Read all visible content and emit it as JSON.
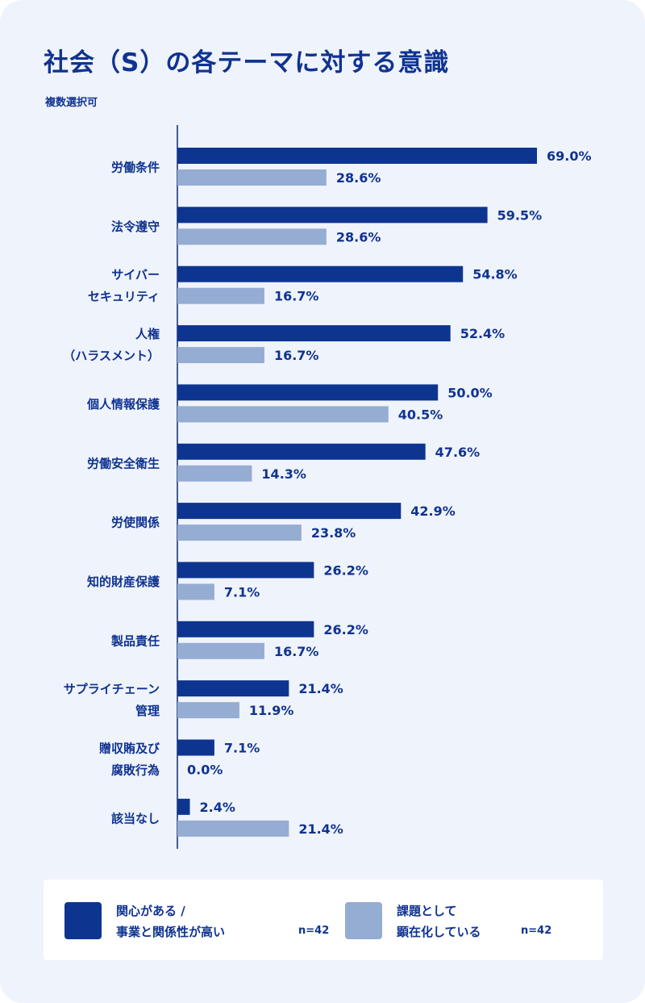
{
  "colors": {
    "primary": "#0d3590",
    "secondary": "#95acd3",
    "text": "#0f3391",
    "background": "#eff3fb"
  },
  "chart_data": {
    "type": "bar",
    "orientation": "horizontal",
    "title": "社会（S）の各テーマに対する意識",
    "subtitle": "複数選択可",
    "categories": [
      [
        "労働条件"
      ],
      [
        "法令遵守"
      ],
      [
        "サイバー",
        "セキュリティ"
      ],
      [
        "人権",
        "（ハラスメント）"
      ],
      [
        "個人情報保護"
      ],
      [
        "労働安全衛生"
      ],
      [
        "労使関係"
      ],
      [
        "知的財産保護"
      ],
      [
        "製品責任"
      ],
      [
        "サプライチェーン",
        "管理"
      ],
      [
        "贈収賄及び",
        "腐敗行為"
      ],
      [
        "該当なし"
      ]
    ],
    "series": [
      {
        "name": "関心がある / 事業と関係性が高い",
        "name_lines": [
          "関心がある /",
          "事業と関係性が高い"
        ],
        "n_label": "n=42",
        "color": "#0d3590",
        "values": [
          69.0,
          59.5,
          54.8,
          52.4,
          50.0,
          47.6,
          42.9,
          26.2,
          26.2,
          21.4,
          7.1,
          2.4
        ],
        "labels": [
          "69.0%",
          "59.5%",
          "54.8%",
          "52.4%",
          "50.0%",
          "47.6%",
          "42.9%",
          "26.2%",
          "26.2%",
          "21.4%",
          "7.1%",
          "2.4%"
        ]
      },
      {
        "name": "課題として 顕在化している",
        "name_lines": [
          "課題として",
          "顕在化している"
        ],
        "n_label": "n=42",
        "color": "#95acd3",
        "values": [
          28.6,
          28.6,
          16.7,
          16.7,
          40.5,
          14.3,
          23.8,
          7.1,
          16.7,
          11.9,
          0.0,
          21.4
        ],
        "labels": [
          "28.6%",
          "28.6%",
          "16.7%",
          "16.7%",
          "40.5%",
          "14.3%",
          "23.8%",
          "7.1%",
          "16.7%",
          "11.9%",
          "0.0%",
          "21.4%"
        ]
      }
    ],
    "grid": false,
    "legend_position": "bottom"
  }
}
